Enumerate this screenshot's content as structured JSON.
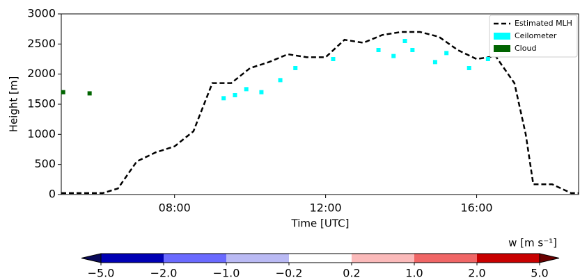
{
  "chart_data": {
    "type": "line",
    "xlabel": "Time [UTC]",
    "ylabel": "Height [m]",
    "xlim": [
      5,
      18.7
    ],
    "ylim": [
      0,
      3000
    ],
    "xticks": [
      {
        "value": 8,
        "label": "08:00"
      },
      {
        "value": 12,
        "label": "12:00"
      },
      {
        "value": 16,
        "label": "16:00"
      }
    ],
    "yticks": [
      0,
      500,
      1000,
      1500,
      2000,
      2500,
      3000
    ],
    "legend": "upper right",
    "series": [
      {
        "name": "Estimated MLH",
        "color": "#000000",
        "style": "dashed",
        "x": [
          5,
          6.1,
          6.5,
          7.0,
          7.5,
          8.0,
          8.5,
          9.0,
          9.5,
          10.0,
          10.5,
          11.0,
          11.5,
          12.0,
          12.5,
          13.0,
          13.5,
          14.0,
          14.5,
          15.0,
          15.5,
          16.0,
          16.5,
          17.0,
          17.3,
          17.5,
          18.0,
          18.5,
          18.7
        ],
        "values": [
          25,
          25,
          100,
          550,
          700,
          800,
          1050,
          1850,
          1850,
          2100,
          2200,
          2330,
          2280,
          2280,
          2570,
          2520,
          2650,
          2700,
          2700,
          2620,
          2400,
          2250,
          2300,
          1850,
          1000,
          170,
          170,
          25,
          25
        ]
      },
      {
        "name": "Ceilometer",
        "color": "#00ffff",
        "style": "points",
        "x": [
          9.3,
          9.6,
          9.9,
          10.3,
          10.8,
          11.2,
          12.2,
          13.4,
          13.8,
          14.1,
          14.3,
          14.9,
          15.2,
          15.8,
          16.3
        ],
        "values": [
          1600,
          1650,
          1750,
          1700,
          1900,
          2100,
          2250,
          2400,
          2300,
          2550,
          2400,
          2200,
          2350,
          2100,
          2250
        ]
      },
      {
        "name": "Cloud",
        "color": "#006400",
        "style": "points",
        "x": [
          5.05,
          5.75
        ],
        "values": [
          1700,
          1680
        ]
      }
    ],
    "colorbar": {
      "label": "w [m s⁻¹]",
      "bounds": [
        {
          "value": -5,
          "label": "−5.0"
        },
        {
          "value": -2,
          "label": "−2.0"
        },
        {
          "value": -1,
          "label": "−1.0"
        },
        {
          "value": -0.2,
          "label": "−0.2"
        },
        {
          "value": 0.2,
          "label": "0.2"
        },
        {
          "value": 1,
          "label": "1.0"
        },
        {
          "value": 2,
          "label": "2.0"
        },
        {
          "value": 5,
          "label": "5.0"
        }
      ],
      "colors": [
        "#0000b4",
        "#6a6aff",
        "#babaf4",
        "#ffffff",
        "#fbbaba",
        "#f06666",
        "#c80000"
      ],
      "extend_colors": [
        "#0a0a5a",
        "#6a0000"
      ]
    }
  }
}
